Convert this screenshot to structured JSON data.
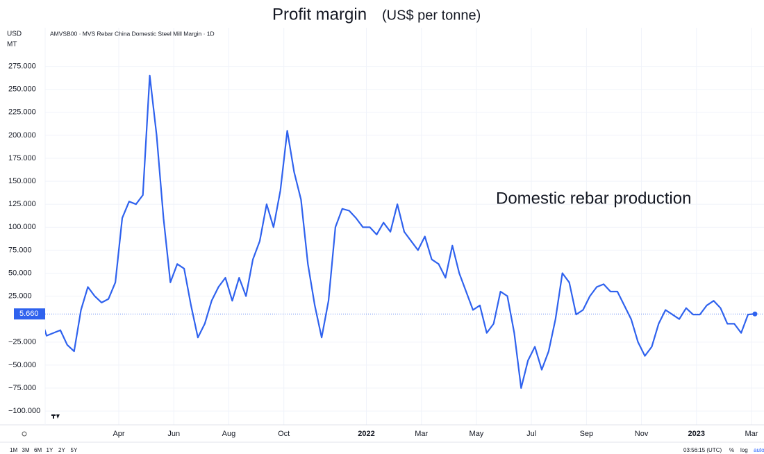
{
  "chart_data": {
    "type": "line",
    "title": "Profit margin",
    "title_unit": "(US$ per tonne)",
    "annotation": "Domestic rebar production",
    "y_unit_top": "USD",
    "y_unit_bottom": "MT",
    "x": [
      "2021-01",
      "2021-01",
      "2021-01",
      "2021-01",
      "2021-02",
      "2021-02",
      "2021-02",
      "2021-02",
      "2021-03",
      "2021-03",
      "2021-03",
      "2021-03",
      "2021-04",
      "2021-04",
      "2021-04",
      "2021-04",
      "2021-05",
      "2021-05",
      "2021-05",
      "2021-05",
      "2021-06",
      "2021-06",
      "2021-06",
      "2021-06",
      "2021-07",
      "2021-07",
      "2021-07",
      "2021-07",
      "2021-08",
      "2021-08",
      "2021-08",
      "2021-08",
      "2021-09",
      "2021-09",
      "2021-09",
      "2021-09",
      "2021-10",
      "2021-10",
      "2021-10",
      "2021-10",
      "2021-11",
      "2021-11",
      "2021-11",
      "2021-11",
      "2021-12",
      "2021-12",
      "2021-12",
      "2021-12",
      "2022-01",
      "2022-01",
      "2022-01",
      "2022-01",
      "2022-02",
      "2022-02",
      "2022-02",
      "2022-02",
      "2022-03",
      "2022-03",
      "2022-03",
      "2022-03",
      "2022-04",
      "2022-04",
      "2022-04",
      "2022-04",
      "2022-05",
      "2022-05",
      "2022-05",
      "2022-05",
      "2022-06",
      "2022-06",
      "2022-06",
      "2022-06",
      "2022-07",
      "2022-07",
      "2022-07",
      "2022-07",
      "2022-08",
      "2022-08",
      "2022-08",
      "2022-08",
      "2022-09",
      "2022-09",
      "2022-09",
      "2022-09",
      "2022-10",
      "2022-10",
      "2022-10",
      "2022-10",
      "2022-11",
      "2022-11",
      "2022-11",
      "2022-11",
      "2022-12",
      "2022-12",
      "2022-12",
      "2022-12",
      "2023-01",
      "2023-01",
      "2023-01",
      "2023-01",
      "2023-02",
      "2023-02",
      "2023-02",
      "2023-02",
      "2023-03"
    ],
    "series": [
      {
        "name": "AMVSB00 · MVS Rebar China Domestic Steel Mill Margin · 1D",
        "color": "#2f62ee",
        "values": [
          5,
          -18,
          -15,
          -12,
          -28,
          -35,
          10,
          35,
          25,
          18,
          22,
          40,
          110,
          128,
          125,
          135,
          265,
          200,
          110,
          40,
          60,
          55,
          15,
          -20,
          -5,
          20,
          35,
          45,
          20,
          45,
          25,
          65,
          85,
          125,
          100,
          140,
          205,
          160,
          130,
          60,
          15,
          -20,
          20,
          100,
          120,
          118,
          110,
          100,
          100,
          92,
          105,
          95,
          125,
          95,
          85,
          75,
          90,
          65,
          60,
          45,
          80,
          50,
          30,
          10,
          15,
          -15,
          -5,
          30,
          25,
          -15,
          -75,
          -45,
          -30,
          -55,
          -35,
          0,
          50,
          40,
          5,
          10,
          25,
          35,
          38,
          30,
          30,
          15,
          0,
          -25,
          -40,
          -30,
          -5,
          10,
          5,
          0,
          12,
          5,
          5,
          15,
          20,
          12,
          -5,
          -5,
          -15,
          5,
          5.66
        ],
        "value_labels": [
          null,
          null,
          null,
          null,
          null,
          null,
          null,
          null,
          null,
          null,
          null,
          null,
          null,
          null,
          null,
          null,
          null,
          null,
          null,
          null,
          null,
          null,
          null,
          null,
          null,
          null,
          null,
          null,
          null,
          null,
          null,
          null,
          null,
          null,
          null,
          null,
          null,
          null,
          null,
          null,
          null,
          null,
          null,
          null,
          null,
          null,
          null,
          null,
          null,
          null,
          null,
          null,
          null,
          null,
          null,
          null,
          null,
          null,
          null,
          null,
          null,
          null,
          null,
          null,
          null,
          null,
          null,
          null,
          null,
          null,
          null,
          null,
          null,
          null,
          null,
          null,
          null,
          null,
          null,
          null,
          null,
          null,
          null,
          null,
          null,
          null,
          null,
          null,
          null,
          null,
          null,
          null,
          null,
          null,
          null,
          null,
          null,
          null,
          null,
          null,
          null,
          null,
          null,
          null,
          "5.660"
        ]
      }
    ],
    "xlim": [
      "2021-01",
      "2023-03"
    ],
    "xticks": [
      {
        "value": "2021-04",
        "label": "Apr"
      },
      {
        "value": "2021-06",
        "label": "Jun"
      },
      {
        "value": "2021-08",
        "label": "Aug"
      },
      {
        "value": "2021-10",
        "label": "Oct"
      },
      {
        "value": "2022-01",
        "label": "2022"
      },
      {
        "value": "2022-03",
        "label": "Mar"
      },
      {
        "value": "2022-05",
        "label": "May"
      },
      {
        "value": "2022-07",
        "label": "Jul"
      },
      {
        "value": "2022-09",
        "label": "Sep"
      },
      {
        "value": "2022-11",
        "label": "Nov"
      },
      {
        "value": "2023-01",
        "label": "2023"
      },
      {
        "value": "2023-03",
        "label": "Mar"
      }
    ],
    "ylim": [
      -115,
      317
    ],
    "yticks": [
      {
        "value": 275,
        "label": "275.000"
      },
      {
        "value": 250,
        "label": "250.000"
      },
      {
        "value": 225,
        "label": "225.000"
      },
      {
        "value": 200,
        "label": "200.000"
      },
      {
        "value": 175,
        "label": "175.000"
      },
      {
        "value": 150,
        "label": "150.000"
      },
      {
        "value": 125,
        "label": "125.000"
      },
      {
        "value": 100,
        "label": "100.000"
      },
      {
        "value": 75,
        "label": "75.000"
      },
      {
        "value": 50,
        "label": "50.000"
      },
      {
        "value": 25,
        "label": "25.000"
      },
      {
        "value": -25,
        "label": "−25.000"
      },
      {
        "value": -50,
        "label": "−50.000"
      },
      {
        "value": -75,
        "label": "−75.000"
      },
      {
        "value": -100,
        "label": "−100.000"
      }
    ],
    "grid": true
  },
  "toolbar": {
    "ranges": [
      "1M",
      "3M",
      "6M",
      "1Y",
      "2Y",
      "5Y"
    ],
    "time": "03:56:15 (UTC)",
    "percent": "%",
    "log": "log",
    "auto": "auto"
  }
}
